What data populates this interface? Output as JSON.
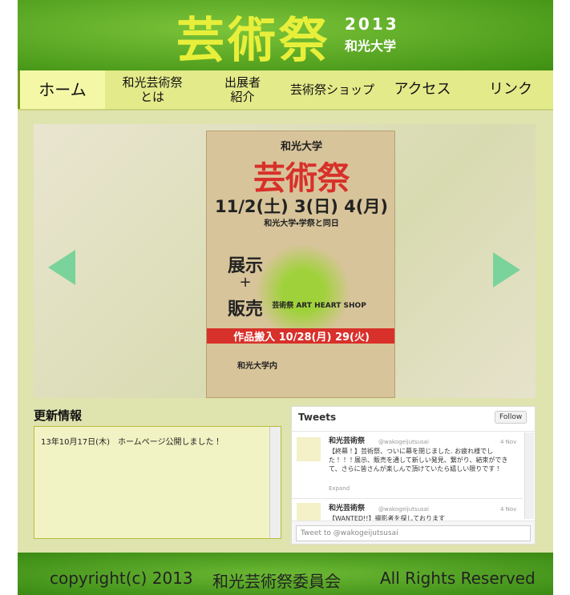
{
  "header": {
    "logo": "芸術祭",
    "year": "2013",
    "university": "和光大学"
  },
  "nav": [
    "ホーム",
    "和光芸術祭\nとは",
    "出展者\n紹介",
    "芸術祭ショップ",
    "アクセス",
    "リンク"
  ],
  "poster": {
    "university": "和光大学",
    "title": "芸術祭",
    "dates": "11/2(土) 3(日) 4(月)",
    "subtitle": "和光大学・学祭と同日",
    "exhibit": "展示",
    "plus": "+",
    "sale": "販売",
    "shop": "芸術祭 ART HEART SHOP",
    "delivery": "作品搬入 10/28(月) 29(火)",
    "place": "和光大学内"
  },
  "news": {
    "title": "更新情報",
    "items": [
      "13年10月17日(木)　ホームページ公開しました！"
    ]
  },
  "tweets": {
    "title": "Tweets",
    "follow": "Follow",
    "items": [
      {
        "name": "和光芸術祭",
        "handle": "@wakogeijutsusai",
        "date": "4 Nov",
        "text": "【終幕！】芸術祭、ついに幕を閉じました. お疲れ様でした！！！展示、販売を通して新しい発見、繋がり、結束ができて、さらに皆さんが楽しんで頂けていたら嬉しい限りです！",
        "expand": "Expand"
      },
      {
        "name": "和光芸術祭",
        "handle": "@wakogeijutsusai",
        "date": "4 Nov",
        "text": "【WANTED!!】撮影者を探しております"
      }
    ],
    "input": "Tweet to @wakogeijutsusai"
  },
  "footer": {
    "copyright": "copyright(c) 2013",
    "org": "和光芸術祭委員会",
    "rights": "All Rights Reserved"
  }
}
